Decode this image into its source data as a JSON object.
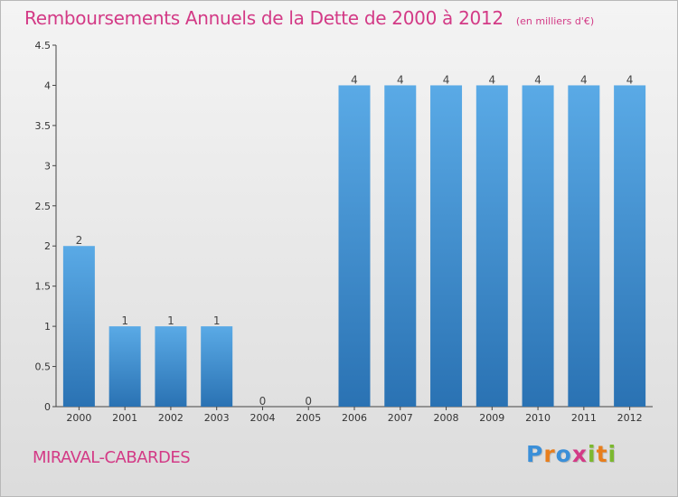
{
  "header": {
    "title": "Remboursements Annuels de la Dette de 2000 à 2012",
    "unit": "(en milliers d'€)"
  },
  "commune": "MIRAVAL-CABARDES",
  "logo": {
    "text": "Proxiti",
    "letters": [
      {
        "ch": "P",
        "color": "#3b8fd8"
      },
      {
        "ch": "r",
        "color": "#e87e1c"
      },
      {
        "ch": "o",
        "color": "#3b8fd8"
      },
      {
        "ch": "x",
        "color": "#d33a86"
      },
      {
        "ch": "i",
        "color": "#7cb82f"
      },
      {
        "ch": "t",
        "color": "#e87e1c"
      },
      {
        "ch": "i",
        "color": "#7cb82f"
      }
    ]
  },
  "colors": {
    "title": "#d33a86",
    "bar_top": "#5aaae6",
    "bar_bottom": "#2a72b3",
    "axis": "#444444"
  },
  "chart_data": {
    "type": "bar",
    "title": "Remboursements Annuels de la Dette de 2000 à 2012",
    "subtitle": "(en milliers d'€)",
    "categories": [
      "2000",
      "2001",
      "2002",
      "2003",
      "2004",
      "2005",
      "2006",
      "2007",
      "2008",
      "2009",
      "2010",
      "2011",
      "2012"
    ],
    "values": [
      2,
      1,
      1,
      1,
      0,
      0,
      4,
      4,
      4,
      4,
      4,
      4,
      4
    ],
    "value_labels": [
      "2",
      "1",
      "1",
      "1",
      "0",
      "0",
      "4",
      "4",
      "4",
      "4",
      "4",
      "4",
      "4"
    ],
    "yticks": [
      0,
      0.5,
      1,
      1.5,
      2,
      2.5,
      3,
      3.5,
      4,
      4.5
    ],
    "ytick_labels": [
      "0",
      "0.5",
      "1",
      "1.5",
      "2",
      "2.5",
      "3",
      "3.5",
      "4",
      "4.5"
    ],
    "ylim": [
      0,
      4.5
    ],
    "xlabel": "",
    "ylabel": "",
    "grid": false
  }
}
